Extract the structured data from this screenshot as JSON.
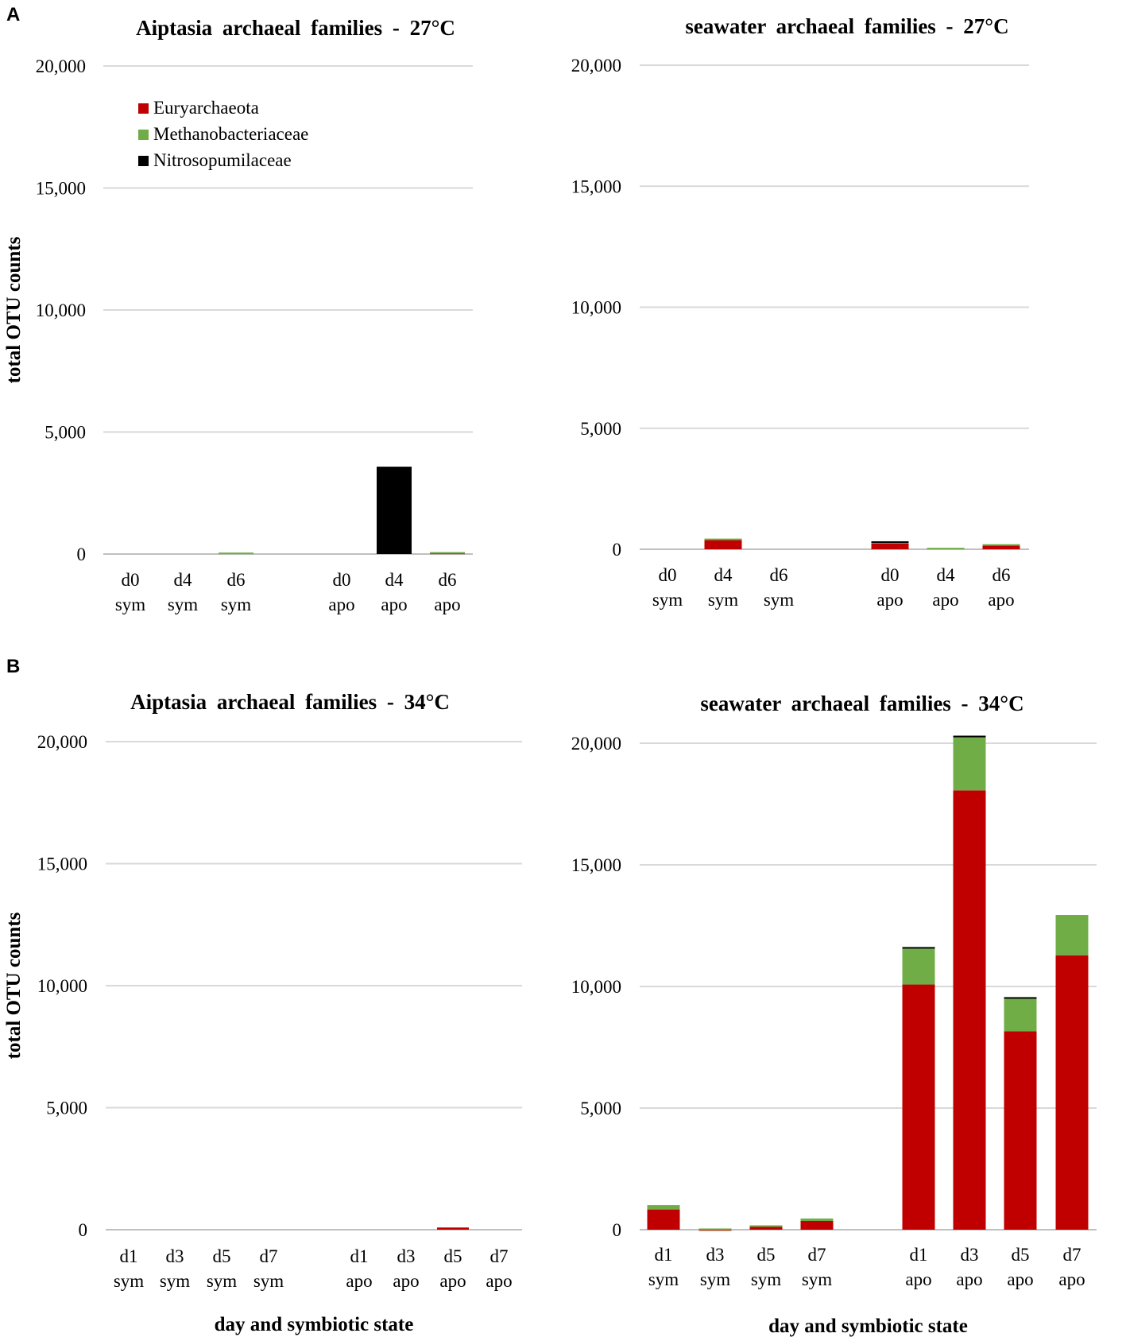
{
  "panel_labels": [
    "A",
    "B"
  ],
  "legend": [
    {
      "label": "Euryarchaeota",
      "color": "#c00000"
    },
    {
      "label": "Methanobacteriaceae",
      "color": "#70ad47"
    },
    {
      "label": "Nitrosopumilaceae",
      "color": "#000000"
    }
  ],
  "colors": {
    "grid": "#d9d9d9",
    "axis": "#bfbfbf"
  },
  "chart_data": [
    {
      "type": "bar",
      "stacked": true,
      "title": "Aiptasia archaeal families - 27°C",
      "ylabel": "total OTU counts",
      "xlabel": "",
      "ylim": [
        0,
        20000
      ],
      "yticks": [
        "0",
        "5,000",
        "10,000",
        "15,000",
        "20,000"
      ],
      "grid": true,
      "legend_position": "top-left",
      "categories": [
        [
          "d0",
          "sym"
        ],
        [
          "d4",
          "sym"
        ],
        [
          "d6",
          "sym"
        ],
        [
          "d0",
          "apo"
        ],
        [
          "d4",
          "apo"
        ],
        [
          "d6",
          "apo"
        ]
      ],
      "series": [
        {
          "name": "Euryarchaeota",
          "values": [
            0,
            0,
            0,
            0,
            0,
            60
          ]
        },
        {
          "name": "Methanobacteriaceae",
          "values": [
            0,
            0,
            60,
            0,
            0,
            20
          ]
        },
        {
          "name": "Nitrosopumilaceae",
          "values": [
            0,
            0,
            0,
            0,
            3580,
            0
          ]
        }
      ]
    },
    {
      "type": "bar",
      "stacked": true,
      "title": "seawater archaeal families - 27°C",
      "ylabel": "",
      "xlabel": "",
      "ylim": [
        0,
        20000
      ],
      "yticks": [
        "0",
        "5,000",
        "10,000",
        "15,000",
        "20,000"
      ],
      "grid": true,
      "categories": [
        [
          "d0",
          "sym"
        ],
        [
          "d4",
          "sym"
        ],
        [
          "d6",
          "sym"
        ],
        [
          "d0",
          "apo"
        ],
        [
          "d4",
          "apo"
        ],
        [
          "d6",
          "apo"
        ]
      ],
      "series": [
        {
          "name": "Euryarchaeota",
          "values": [
            0,
            380,
            0,
            270,
            0,
            190
          ]
        },
        {
          "name": "Methanobacteriaceae",
          "values": [
            0,
            60,
            0,
            30,
            60,
            20
          ]
        },
        {
          "name": "Nitrosopumilaceae",
          "values": [
            0,
            0,
            0,
            30,
            0,
            0
          ]
        }
      ]
    },
    {
      "type": "bar",
      "stacked": true,
      "title": "Aiptasia archaeal families - 34°C",
      "ylabel": "total OTU counts",
      "xlabel": "day and symbiotic state",
      "ylim": [
        0,
        20000
      ],
      "yticks": [
        "0",
        "5,000",
        "10,000",
        "15,000",
        "20,000"
      ],
      "grid": true,
      "categories": [
        [
          "d1",
          "sym"
        ],
        [
          "d3",
          "sym"
        ],
        [
          "d5",
          "sym"
        ],
        [
          "d7",
          "sym"
        ],
        [
          "d1",
          "apo"
        ],
        [
          "d3",
          "apo"
        ],
        [
          "d5",
          "apo"
        ],
        [
          "d7",
          "apo"
        ]
      ],
      "series": [
        {
          "name": "Euryarchaeota",
          "values": [
            0,
            0,
            0,
            0,
            0,
            0,
            90,
            0
          ]
        },
        {
          "name": "Methanobacteriaceae",
          "values": [
            0,
            0,
            0,
            0,
            0,
            0,
            0,
            0
          ]
        },
        {
          "name": "Nitrosopumilaceae",
          "values": [
            0,
            0,
            0,
            0,
            0,
            0,
            0,
            0
          ]
        }
      ]
    },
    {
      "type": "bar",
      "stacked": true,
      "title": "seawater archaeal families - 34°C",
      "ylabel": "",
      "xlabel": "day and symbiotic state",
      "ylim": [
        0,
        20000
      ],
      "yticks": [
        "0",
        "5,000",
        "10,000",
        "15,000",
        "20,000"
      ],
      "grid": true,
      "categories": [
        [
          "d1",
          "sym"
        ],
        [
          "d3",
          "sym"
        ],
        [
          "d5",
          "sym"
        ],
        [
          "d7",
          "sym"
        ],
        [
          "d1",
          "apo"
        ],
        [
          "d3",
          "apo"
        ],
        [
          "d5",
          "apo"
        ],
        [
          "d7",
          "apo"
        ]
      ],
      "series": [
        {
          "name": "Euryarchaeota",
          "values": [
            830,
            20,
            140,
            360,
            10080,
            18060,
            8160,
            11280
          ]
        },
        {
          "name": "Methanobacteriaceae",
          "values": [
            180,
            30,
            40,
            100,
            1480,
            2180,
            1350,
            1660
          ]
        },
        {
          "name": "Nitrosopumilaceae",
          "values": [
            0,
            0,
            0,
            0,
            60,
            70,
            50,
            0
          ]
        }
      ]
    }
  ]
}
